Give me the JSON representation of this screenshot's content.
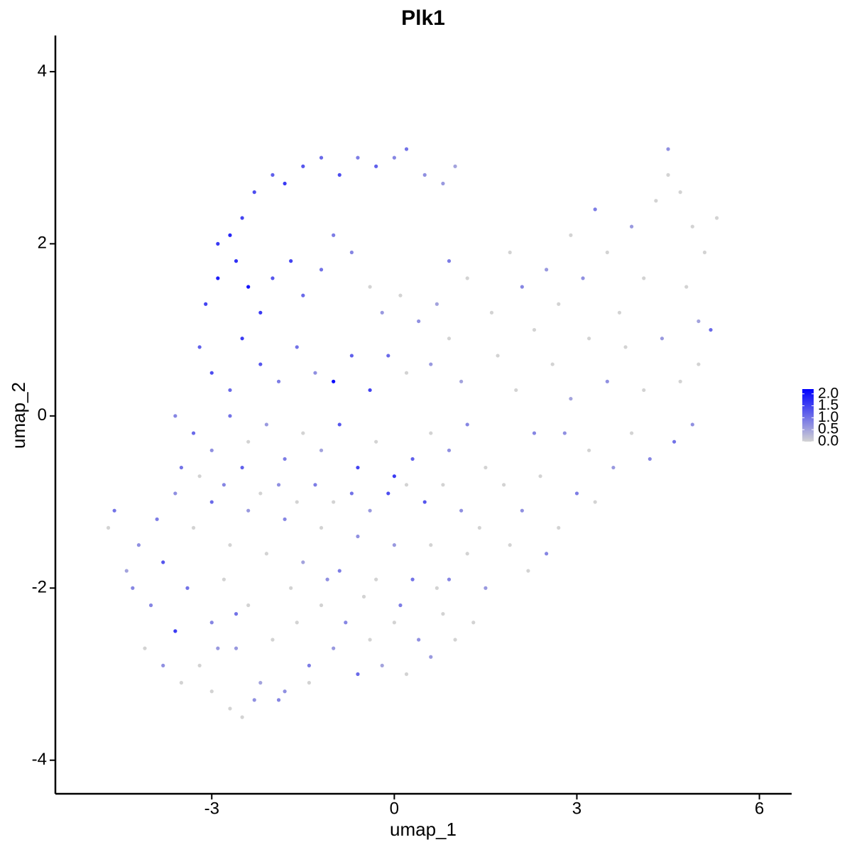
{
  "chart_data": {
    "type": "scatter",
    "title": "Plk1",
    "x_label": "umap_1",
    "y_label": "umap_2",
    "xlim": [
      -5.57,
      6.53
    ],
    "ylim": [
      -4.39,
      4.42
    ],
    "xticks": [
      -3,
      0,
      3,
      6
    ],
    "yticks": [
      -4,
      -2,
      0,
      2,
      4
    ],
    "color_low": "#d3d3d3",
    "color_high": "#0000ff",
    "colorlim": [
      0,
      2.2
    ],
    "colorticks": [
      {
        "value": 0,
        "label": "0.0"
      },
      {
        "value": 0.5,
        "label": "0.5"
      },
      {
        "value": 1,
        "label": "1.0"
      },
      {
        "value": 1.5,
        "label": "1.5"
      },
      {
        "value": 2,
        "label": "2.0"
      }
    ],
    "x": [
      -2.9,
      -2.7,
      -2.5,
      -2.3,
      -2.0,
      -1.8,
      -1.5,
      -1.2,
      -0.9,
      -0.6,
      -0.3,
      0.0,
      0.2,
      0.5,
      0.8,
      1.0,
      -3.1,
      -2.9,
      -2.6,
      -2.4,
      -2.2,
      -2.0,
      -1.7,
      -1.5,
      -1.2,
      -1.0,
      -0.7,
      -0.4,
      -0.2,
      0.1,
      0.4,
      0.7,
      0.9,
      1.2,
      -3.2,
      -3.0,
      -2.7,
      -2.5,
      -2.2,
      -1.9,
      -1.6,
      -1.3,
      -1.0,
      -0.7,
      -0.4,
      -0.1,
      0.2,
      0.6,
      0.9,
      1.1,
      -3.6,
      -3.3,
      -3.0,
      -2.7,
      -2.4,
      -2.1,
      -1.8,
      -1.5,
      -1.2,
      -0.9,
      -0.6,
      -0.3,
      0.0,
      0.3,
      0.6,
      0.9,
      1.2,
      1.5,
      1.6,
      1.9,
      2.1,
      2.3,
      2.5,
      2.7,
      2.9,
      3.1,
      3.3,
      3.5,
      3.7,
      3.9,
      4.1,
      4.3,
      4.5,
      4.7,
      4.9,
      5.1,
      5.3,
      4.5,
      4.8,
      5.0,
      5.2,
      5.0,
      1.7,
      2.0,
      2.3,
      2.6,
      2.9,
      3.2,
      3.5,
      3.8,
      4.1,
      4.4,
      4.7,
      4.9,
      4.6,
      4.2,
      3.9,
      1.8,
      2.1,
      2.4,
      2.7,
      3.0,
      3.3,
      3.6,
      3.2,
      2.5,
      2.2,
      1.9,
      2.8,
      -4.7,
      -4.6,
      -4.4,
      -4.2,
      -4.0,
      -3.8,
      -3.6,
      -3.4,
      -3.2,
      -3.0,
      -2.8,
      -2.6,
      -2.4,
      -2.2,
      -2.0,
      -1.8,
      -1.6,
      -1.4,
      -1.2,
      -1.0,
      -0.8,
      -0.6,
      -0.4,
      -0.2,
      0.0,
      0.2,
      0.4,
      0.6,
      0.8,
      1.0,
      -2.5,
      -2.3,
      -2.7,
      -3.0,
      -1.9,
      -1.4,
      -3.9,
      -3.6,
      -3.3,
      -3.0,
      -2.7,
      -2.4,
      -2.1,
      -1.8,
      -1.5,
      -1.2,
      -0.9,
      -0.6,
      -0.3,
      0.0,
      0.3,
      0.6,
      0.9,
      1.2,
      1.5,
      1.3,
      -3.5,
      -3.2,
      -2.8,
      -2.5,
      -2.2,
      -1.9,
      -1.6,
      -1.3,
      -1.0,
      -0.7,
      -0.4,
      -0.1,
      0.2,
      0.5,
      0.8,
      1.1,
      1.4,
      -4.1,
      -3.8,
      -3.5,
      -4.3,
      -2.9,
      -2.6,
      -1.7,
      -1.1,
      -0.5,
      0.1,
      0.7
    ],
    "y": [
      2.0,
      2.1,
      2.3,
      2.6,
      2.8,
      2.7,
      2.9,
      3.0,
      2.8,
      3.0,
      2.9,
      3.0,
      3.1,
      2.8,
      2.7,
      2.9,
      1.3,
      1.6,
      1.8,
      1.5,
      1.2,
      1.6,
      1.8,
      1.4,
      1.7,
      2.1,
      1.9,
      1.5,
      1.2,
      1.4,
      1.1,
      1.3,
      1.8,
      1.6,
      0.8,
      0.5,
      0.3,
      0.9,
      0.6,
      0.4,
      0.8,
      0.5,
      0.4,
      0.7,
      0.3,
      0.7,
      0.5,
      0.6,
      0.9,
      0.4,
      0.0,
      -0.2,
      -0.4,
      0.0,
      -0.3,
      -0.1,
      -0.5,
      -0.2,
      -0.4,
      -0.1,
      -0.6,
      -0.3,
      -0.7,
      -0.5,
      -0.2,
      -0.4,
      -0.1,
      -0.6,
      1.2,
      1.9,
      1.5,
      1.0,
      1.7,
      1.3,
      2.1,
      1.6,
      2.4,
      1.9,
      1.2,
      2.2,
      1.6,
      2.5,
      2.8,
      2.6,
      2.2,
      1.9,
      2.3,
      3.1,
      1.5,
      1.1,
      1.0,
      0.6,
      0.7,
      0.3,
      -0.2,
      0.6,
      0.2,
      0.9,
      0.4,
      0.8,
      0.3,
      0.9,
      0.4,
      -0.1,
      -0.3,
      -0.5,
      -0.2,
      -0.8,
      -1.1,
      -0.7,
      -1.3,
      -0.9,
      -1.0,
      -0.6,
      -0.4,
      -1.6,
      -1.8,
      -1.5,
      -0.2,
      -1.3,
      -1.1,
      -1.8,
      -1.5,
      -2.2,
      -1.7,
      -2.5,
      -2.0,
      -2.9,
      -2.4,
      -1.9,
      -2.7,
      -2.2,
      -3.1,
      -2.6,
      -3.2,
      -2.4,
      -2.9,
      -2.2,
      -2.7,
      -2.4,
      -3.0,
      -2.6,
      -2.9,
      -2.4,
      -3.0,
      -2.6,
      -2.8,
      -2.3,
      -2.6,
      -3.5,
      -3.3,
      -3.4,
      -3.2,
      -3.3,
      -3.1,
      -1.2,
      -0.9,
      -1.3,
      -1.0,
      -1.5,
      -1.1,
      -1.6,
      -1.2,
      -1.7,
      -1.3,
      -1.8,
      -1.4,
      -1.9,
      -1.5,
      -1.9,
      -1.5,
      -1.9,
      -1.6,
      -2.0,
      -2.4,
      -0.6,
      -0.7,
      -0.8,
      -0.6,
      -0.9,
      -0.8,
      -1.0,
      -0.8,
      -1.0,
      -0.9,
      -1.1,
      -0.9,
      -0.8,
      -1.0,
      -0.8,
      -1.1,
      -1.3,
      -2.7,
      -2.9,
      -3.1,
      -2.0,
      -2.7,
      -2.3,
      -2.0,
      -1.9,
      -2.1,
      -2.2,
      -2.0
    ],
    "values": [
      1.6,
      1.8,
      1.5,
      1.4,
      1.2,
      1.6,
      1.3,
      1.1,
      1.4,
      0.9,
      1.2,
      0.8,
      1.0,
      0.7,
      0.6,
      0.5,
      1.5,
      1.9,
      1.7,
      2.0,
      1.6,
      1.3,
      1.5,
      1.1,
      1.0,
      0.9,
      0.8,
      0,
      0.6,
      0,
      0.7,
      0.5,
      0.9,
      0,
      1.2,
      1.4,
      1.1,
      1.6,
      1.3,
      0.9,
      1.0,
      0.7,
      2.1,
      1.2,
      1.5,
      1.1,
      0,
      0.6,
      0,
      0.5,
      0.8,
      1.1,
      0.7,
      1.0,
      0,
      0.6,
      0.9,
      0,
      0.5,
      1.3,
      1.5,
      0,
      1.6,
      1.2,
      0,
      0.7,
      0.8,
      0,
      0,
      0,
      0.8,
      0,
      0.6,
      0,
      0,
      0.7,
      0.9,
      0,
      0,
      0.6,
      0,
      0,
      0,
      0,
      0,
      0,
      0,
      0.7,
      0,
      0.5,
      1.1,
      0,
      0,
      0,
      0.8,
      0,
      0.5,
      0,
      0.7,
      0,
      0,
      0.6,
      0,
      0.7,
      1.0,
      0.8,
      0,
      0,
      0.7,
      0,
      0,
      0.9,
      0,
      0.6,
      0,
      0.8,
      0,
      0,
      0.7,
      0,
      1.0,
      0.5,
      0.7,
      0.8,
      1.3,
      1.6,
      1.0,
      0,
      0.8,
      0,
      0.6,
      0,
      0.5,
      0,
      0.7,
      0,
      0.9,
      0,
      0.6,
      0.8,
      1.1,
      0,
      0.5,
      0,
      0,
      0.7,
      0.6,
      0,
      0,
      0,
      0.7,
      0,
      0,
      0.8,
      0,
      0.9,
      0.7,
      0,
      1.1,
      0,
      0.6,
      0,
      0.8,
      0.5,
      0,
      0.9,
      0.7,
      0,
      0.6,
      1.0,
      0,
      0.8,
      0,
      0.6,
      0,
      1.0,
      0,
      0.8,
      1.2,
      0,
      0.7,
      0,
      0.9,
      0,
      1.0,
      0.6,
      1.4,
      0,
      1.3,
      0,
      0.7,
      0,
      0,
      0.7,
      0,
      0.8,
      0.6,
      1.0,
      0,
      0.7,
      0,
      0.9,
      0
    ]
  }
}
